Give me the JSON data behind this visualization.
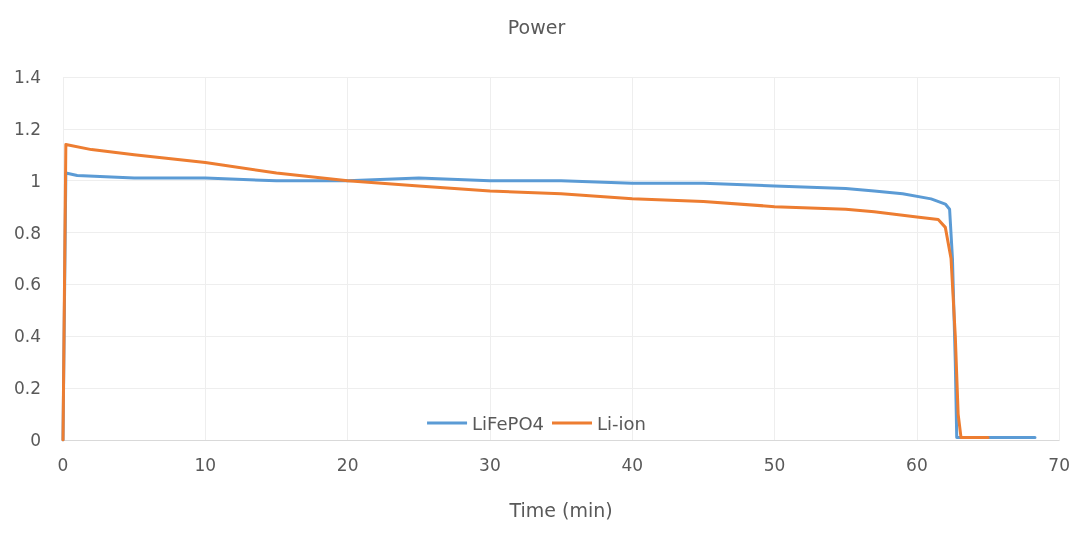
{
  "chart_data": {
    "type": "line",
    "title": "Power",
    "xlabel": "Time (min)",
    "xlim": [
      0,
      70
    ],
    "xticks": [
      0,
      10,
      20,
      30,
      40,
      50,
      60,
      70
    ],
    "ylim": [
      0,
      1.4
    ],
    "yticks": [
      0,
      0.2,
      0.4,
      0.6,
      0.8,
      1,
      1.2,
      1.4
    ],
    "grid": true,
    "legend": "bottom",
    "marker": "none",
    "line_style": "solid",
    "series": [
      {
        "name": "LiFePO4",
        "color": "#5b9bd5",
        "x": [
          0,
          0.2,
          1,
          5,
          10,
          15,
          20,
          25,
          30,
          35,
          40,
          45,
          50,
          55,
          57,
          59,
          61,
          62,
          62.3,
          62.5,
          62.7,
          62.8,
          63,
          65,
          68.3
        ],
        "values": [
          0,
          1.03,
          1.02,
          1.01,
          1.01,
          1.0,
          1.0,
          1.01,
          1.0,
          1.0,
          0.99,
          0.99,
          0.98,
          0.97,
          0.96,
          0.95,
          0.93,
          0.91,
          0.89,
          0.7,
          0.3,
          0.01,
          0.01,
          0.01,
          0.01
        ]
      },
      {
        "name": "Li-ion",
        "color": "#ed7d31",
        "x": [
          0,
          0.2,
          2,
          5,
          10,
          15,
          20,
          25,
          30,
          35,
          40,
          45,
          50,
          55,
          57,
          60,
          61.5,
          62,
          62.4,
          62.7,
          62.9,
          63.1,
          65
        ],
        "values": [
          0,
          1.14,
          1.12,
          1.1,
          1.07,
          1.03,
          1.0,
          0.98,
          0.96,
          0.95,
          0.93,
          0.92,
          0.9,
          0.89,
          0.88,
          0.86,
          0.85,
          0.82,
          0.7,
          0.4,
          0.1,
          0.01,
          0.01
        ]
      }
    ]
  }
}
